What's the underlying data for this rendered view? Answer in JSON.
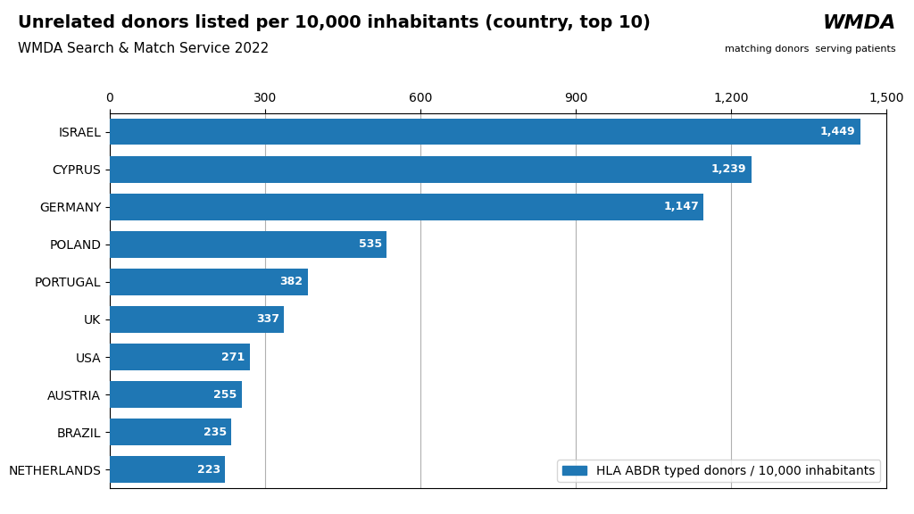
{
  "chart_data": {
    "type": "bar",
    "orientation": "horizontal",
    "title": "Unrelated donors listed per 10,000 inhabitants (country, top 10)",
    "subtitle": "WMDA Search & Match Service 2022",
    "annotations": [
      "WMDA",
      "matching donors  serving patients"
    ],
    "categories": [
      "ISRAEL",
      "CYPRUS",
      "GERMANY",
      "POLAND",
      "PORTUGAL",
      "UK",
      "USA",
      "AUSTRIA",
      "BRAZIL",
      "NETHERLANDS"
    ],
    "series": [
      {
        "name": "HLA ABDR typed donors / 10,000 inhabitants",
        "values": [
          1449,
          1239,
          1147,
          535,
          382,
          337,
          271,
          255,
          235,
          223
        ],
        "value_labels": [
          "1,449",
          "1,239",
          "1,147",
          "535",
          "382",
          "337",
          "271",
          "255",
          "235",
          "223"
        ]
      }
    ],
    "data_labels": true,
    "xlim": [
      0,
      1500
    ],
    "xticks": [
      0,
      300,
      600,
      900,
      {
        "value": 1200,
        "label": "1,200"
      },
      {
        "value": 1500,
        "label": "1,500"
      }
    ],
    "grid": true,
    "legend": "lower right"
  }
}
